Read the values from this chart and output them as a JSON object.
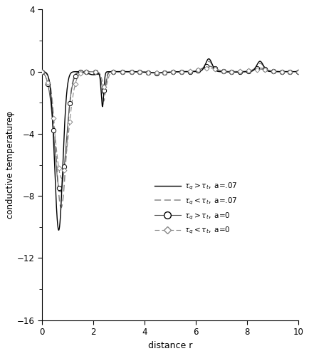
{
  "title": "",
  "xlabel": "distance r",
  "ylabel": "conductive temperatureφ",
  "xlim": [
    0,
    10
  ],
  "ylim": [
    -16,
    4
  ],
  "yticks": [
    4,
    0,
    -4,
    -8,
    -12,
    -16
  ],
  "xticks": [
    0,
    2,
    4,
    6,
    8,
    10
  ],
  "figsize": [
    4.35,
    5.0
  ],
  "dpi": 100,
  "bg_color": "white"
}
